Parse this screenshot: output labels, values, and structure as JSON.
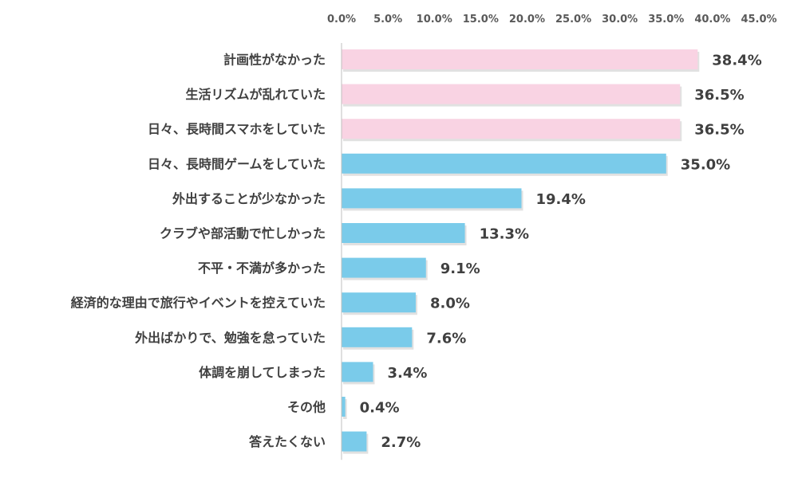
{
  "chart_data": {
    "type": "bar",
    "orientation": "horizontal",
    "title": "",
    "xlabel": "",
    "ylabel": "",
    "xlim": [
      0,
      45
    ],
    "x_ticks": [
      "0.0%",
      "5.0%",
      "10.0%",
      "15.0%",
      "20.0%",
      "25.0%",
      "30.0%",
      "35.0%",
      "40.0%",
      "45.0%"
    ],
    "x_axis_position": "top",
    "grid": false,
    "legend": "none",
    "categories": [
      "計画性がなかった",
      "生活リズムが乱れていた",
      "日々、長時間スマホをしていた",
      "日々、長時間ゲームをしていた",
      "外出することが少なかった",
      "クラブや部活動で忙しかった",
      "不平・不満が多かった",
      "経済的な理由で旅行やイベントを控えていた",
      "外出ばかりで、勉強を怠っていた",
      "体調を崩してしまった",
      "その他",
      "答えたくない"
    ],
    "values": [
      38.4,
      36.5,
      36.5,
      35.0,
      19.4,
      13.3,
      9.1,
      8.0,
      7.6,
      3.4,
      0.4,
      2.7
    ],
    "data_labels": [
      "38.4%",
      "36.5%",
      "36.5%",
      "35.0%",
      "19.4%",
      "13.3%",
      "9.1%",
      "8.0%",
      "7.6%",
      "3.4%",
      "0.4%",
      "2.7%"
    ],
    "highlighted_count": 3,
    "colors": {
      "highlight": "#F9D3E3",
      "default": "#7ACBEA",
      "axis": "#BFBFBF",
      "label_text": "#404040",
      "tick_text": "#595959",
      "shadow": "#C8C8C8"
    }
  }
}
